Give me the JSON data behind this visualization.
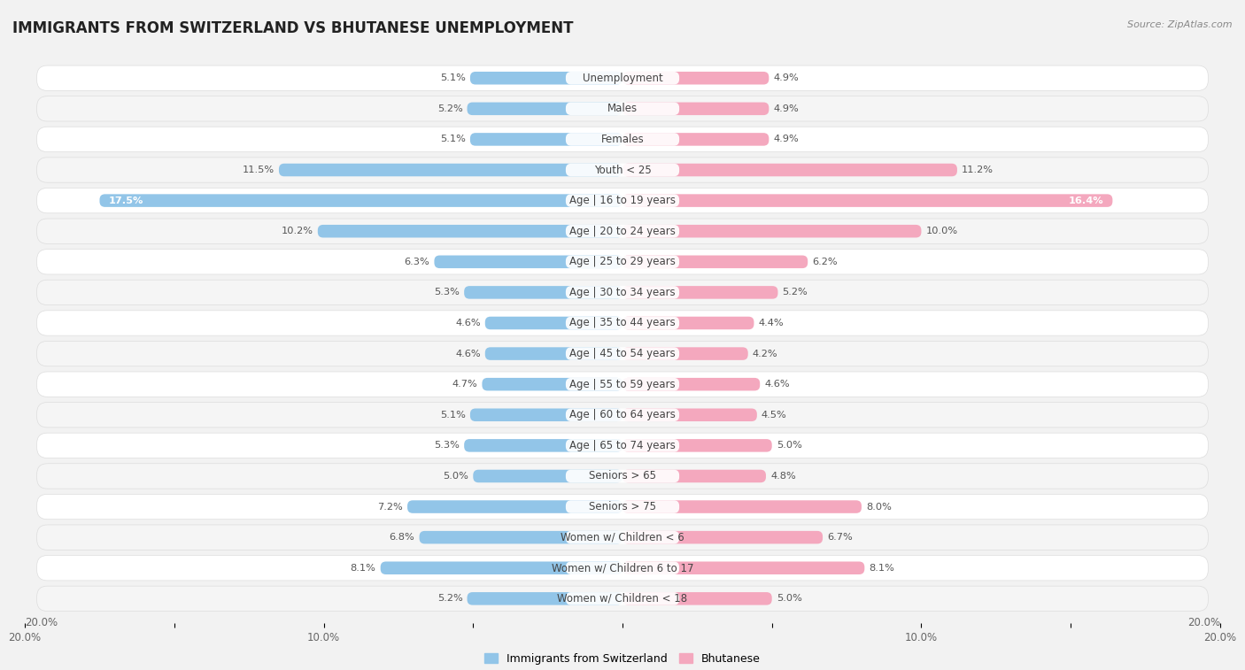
{
  "title": "IMMIGRANTS FROM SWITZERLAND VS BHUTANESE UNEMPLOYMENT",
  "source": "Source: ZipAtlas.com",
  "categories": [
    "Unemployment",
    "Males",
    "Females",
    "Youth < 25",
    "Age | 16 to 19 years",
    "Age | 20 to 24 years",
    "Age | 25 to 29 years",
    "Age | 30 to 34 years",
    "Age | 35 to 44 years",
    "Age | 45 to 54 years",
    "Age | 55 to 59 years",
    "Age | 60 to 64 years",
    "Age | 65 to 74 years",
    "Seniors > 65",
    "Seniors > 75",
    "Women w/ Children < 6",
    "Women w/ Children 6 to 17",
    "Women w/ Children < 18"
  ],
  "left_values": [
    5.1,
    5.2,
    5.1,
    11.5,
    17.5,
    10.2,
    6.3,
    5.3,
    4.6,
    4.6,
    4.7,
    5.1,
    5.3,
    5.0,
    7.2,
    6.8,
    8.1,
    5.2
  ],
  "right_values": [
    4.9,
    4.9,
    4.9,
    11.2,
    16.4,
    10.0,
    6.2,
    5.2,
    4.4,
    4.2,
    4.6,
    4.5,
    5.0,
    4.8,
    8.0,
    6.7,
    8.1,
    5.0
  ],
  "left_color": "#92C5E8",
  "right_color": "#F4A8BE",
  "left_color_dark": "#5B9EC9",
  "right_color_dark": "#E8607A",
  "left_label": "Immigrants from Switzerland",
  "right_label": "Bhutanese",
  "axis_max": 20.0,
  "background_color": "#f2f2f2",
  "row_bg": "#FFFFFF",
  "row_alt_bg": "#F5F5F5",
  "title_fontsize": 12,
  "label_fontsize": 8.5,
  "value_fontsize": 8.2,
  "tick_fontsize": 8.5
}
